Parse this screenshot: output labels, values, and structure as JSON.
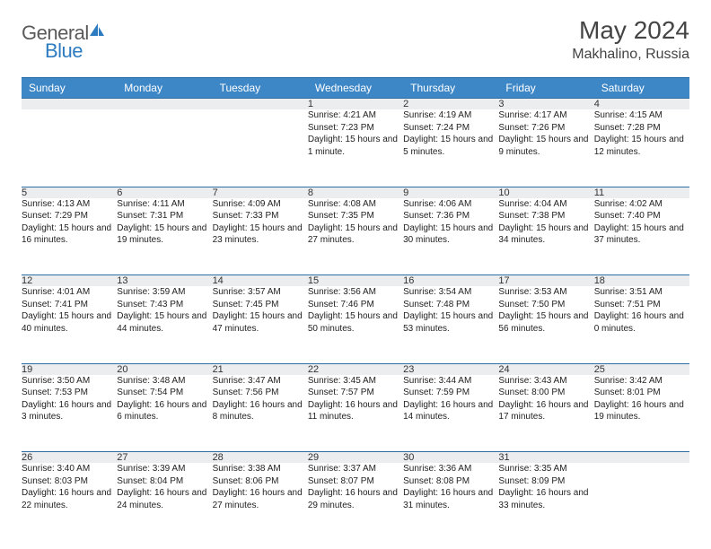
{
  "brand": {
    "part1": "General",
    "part2": "Blue"
  },
  "title": "May 2024",
  "location": "Makhalino, Russia",
  "colors": {
    "header_bg": "#3d87c7",
    "border": "#2d6da3",
    "daynum_bg": "#ecedee"
  },
  "weekdays": [
    "Sunday",
    "Monday",
    "Tuesday",
    "Wednesday",
    "Thursday",
    "Friday",
    "Saturday"
  ],
  "weeks": [
    {
      "nums": [
        "",
        "",
        "",
        "1",
        "2",
        "3",
        "4"
      ],
      "cells": [
        {
          "sunrise": "",
          "sunset": "",
          "daylight": ""
        },
        {
          "sunrise": "",
          "sunset": "",
          "daylight": ""
        },
        {
          "sunrise": "",
          "sunset": "",
          "daylight": ""
        },
        {
          "sunrise": "Sunrise: 4:21 AM",
          "sunset": "Sunset: 7:23 PM",
          "daylight": "Daylight: 15 hours and 1 minute."
        },
        {
          "sunrise": "Sunrise: 4:19 AM",
          "sunset": "Sunset: 7:24 PM",
          "daylight": "Daylight: 15 hours and 5 minutes."
        },
        {
          "sunrise": "Sunrise: 4:17 AM",
          "sunset": "Sunset: 7:26 PM",
          "daylight": "Daylight: 15 hours and 9 minutes."
        },
        {
          "sunrise": "Sunrise: 4:15 AM",
          "sunset": "Sunset: 7:28 PM",
          "daylight": "Daylight: 15 hours and 12 minutes."
        }
      ]
    },
    {
      "nums": [
        "5",
        "6",
        "7",
        "8",
        "9",
        "10",
        "11"
      ],
      "cells": [
        {
          "sunrise": "Sunrise: 4:13 AM",
          "sunset": "Sunset: 7:29 PM",
          "daylight": "Daylight: 15 hours and 16 minutes."
        },
        {
          "sunrise": "Sunrise: 4:11 AM",
          "sunset": "Sunset: 7:31 PM",
          "daylight": "Daylight: 15 hours and 19 minutes."
        },
        {
          "sunrise": "Sunrise: 4:09 AM",
          "sunset": "Sunset: 7:33 PM",
          "daylight": "Daylight: 15 hours and 23 minutes."
        },
        {
          "sunrise": "Sunrise: 4:08 AM",
          "sunset": "Sunset: 7:35 PM",
          "daylight": "Daylight: 15 hours and 27 minutes."
        },
        {
          "sunrise": "Sunrise: 4:06 AM",
          "sunset": "Sunset: 7:36 PM",
          "daylight": "Daylight: 15 hours and 30 minutes."
        },
        {
          "sunrise": "Sunrise: 4:04 AM",
          "sunset": "Sunset: 7:38 PM",
          "daylight": "Daylight: 15 hours and 34 minutes."
        },
        {
          "sunrise": "Sunrise: 4:02 AM",
          "sunset": "Sunset: 7:40 PM",
          "daylight": "Daylight: 15 hours and 37 minutes."
        }
      ]
    },
    {
      "nums": [
        "12",
        "13",
        "14",
        "15",
        "16",
        "17",
        "18"
      ],
      "cells": [
        {
          "sunrise": "Sunrise: 4:01 AM",
          "sunset": "Sunset: 7:41 PM",
          "daylight": "Daylight: 15 hours and 40 minutes."
        },
        {
          "sunrise": "Sunrise: 3:59 AM",
          "sunset": "Sunset: 7:43 PM",
          "daylight": "Daylight: 15 hours and 44 minutes."
        },
        {
          "sunrise": "Sunrise: 3:57 AM",
          "sunset": "Sunset: 7:45 PM",
          "daylight": "Daylight: 15 hours and 47 minutes."
        },
        {
          "sunrise": "Sunrise: 3:56 AM",
          "sunset": "Sunset: 7:46 PM",
          "daylight": "Daylight: 15 hours and 50 minutes."
        },
        {
          "sunrise": "Sunrise: 3:54 AM",
          "sunset": "Sunset: 7:48 PM",
          "daylight": "Daylight: 15 hours and 53 minutes."
        },
        {
          "sunrise": "Sunrise: 3:53 AM",
          "sunset": "Sunset: 7:50 PM",
          "daylight": "Daylight: 15 hours and 56 minutes."
        },
        {
          "sunrise": "Sunrise: 3:51 AM",
          "sunset": "Sunset: 7:51 PM",
          "daylight": "Daylight: 16 hours and 0 minutes."
        }
      ]
    },
    {
      "nums": [
        "19",
        "20",
        "21",
        "22",
        "23",
        "24",
        "25"
      ],
      "cells": [
        {
          "sunrise": "Sunrise: 3:50 AM",
          "sunset": "Sunset: 7:53 PM",
          "daylight": "Daylight: 16 hours and 3 minutes."
        },
        {
          "sunrise": "Sunrise: 3:48 AM",
          "sunset": "Sunset: 7:54 PM",
          "daylight": "Daylight: 16 hours and 6 minutes."
        },
        {
          "sunrise": "Sunrise: 3:47 AM",
          "sunset": "Sunset: 7:56 PM",
          "daylight": "Daylight: 16 hours and 8 minutes."
        },
        {
          "sunrise": "Sunrise: 3:45 AM",
          "sunset": "Sunset: 7:57 PM",
          "daylight": "Daylight: 16 hours and 11 minutes."
        },
        {
          "sunrise": "Sunrise: 3:44 AM",
          "sunset": "Sunset: 7:59 PM",
          "daylight": "Daylight: 16 hours and 14 minutes."
        },
        {
          "sunrise": "Sunrise: 3:43 AM",
          "sunset": "Sunset: 8:00 PM",
          "daylight": "Daylight: 16 hours and 17 minutes."
        },
        {
          "sunrise": "Sunrise: 3:42 AM",
          "sunset": "Sunset: 8:01 PM",
          "daylight": "Daylight: 16 hours and 19 minutes."
        }
      ]
    },
    {
      "nums": [
        "26",
        "27",
        "28",
        "29",
        "30",
        "31",
        ""
      ],
      "cells": [
        {
          "sunrise": "Sunrise: 3:40 AM",
          "sunset": "Sunset: 8:03 PM",
          "daylight": "Daylight: 16 hours and 22 minutes."
        },
        {
          "sunrise": "Sunrise: 3:39 AM",
          "sunset": "Sunset: 8:04 PM",
          "daylight": "Daylight: 16 hours and 24 minutes."
        },
        {
          "sunrise": "Sunrise: 3:38 AM",
          "sunset": "Sunset: 8:06 PM",
          "daylight": "Daylight: 16 hours and 27 minutes."
        },
        {
          "sunrise": "Sunrise: 3:37 AM",
          "sunset": "Sunset: 8:07 PM",
          "daylight": "Daylight: 16 hours and 29 minutes."
        },
        {
          "sunrise": "Sunrise: 3:36 AM",
          "sunset": "Sunset: 8:08 PM",
          "daylight": "Daylight: 16 hours and 31 minutes."
        },
        {
          "sunrise": "Sunrise: 3:35 AM",
          "sunset": "Sunset: 8:09 PM",
          "daylight": "Daylight: 16 hours and 33 minutes."
        },
        {
          "sunrise": "",
          "sunset": "",
          "daylight": ""
        }
      ]
    }
  ]
}
